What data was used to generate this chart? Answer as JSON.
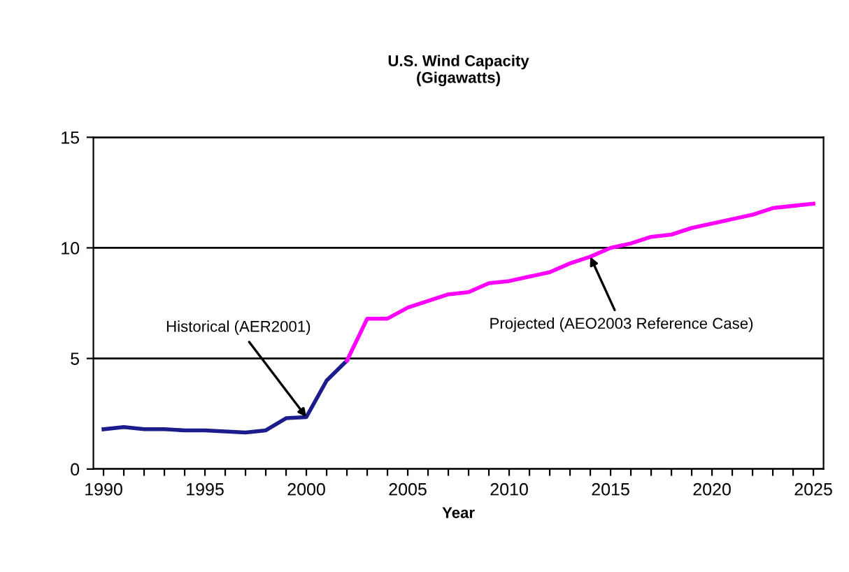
{
  "chart_data": {
    "type": "line",
    "title": "U.S. Wind Capacity\n(Gigawatts)",
    "xlabel": "Year",
    "series": [
      {
        "color": "#1c1c8c",
        "x": [
          1990,
          1991,
          1992,
          1993,
          1994,
          1995,
          1996,
          1997,
          1998,
          1999,
          2000,
          2001,
          2002
        ],
        "values": [
          1.8,
          1.9,
          1.8,
          1.8,
          1.75,
          1.75,
          1.7,
          1.65,
          1.75,
          2.3,
          2.35,
          4.0,
          4.9
        ]
      },
      {
        "color": "#ff00ff",
        "x": [
          2002,
          2003,
          2004,
          2005,
          2006,
          2007,
          2008,
          2009,
          2010,
          2011,
          2012,
          2013,
          2014,
          2015,
          2016,
          2017,
          2018,
          2019,
          2020,
          2021,
          2022,
          2023,
          2024,
          2025
        ],
        "values": [
          4.9,
          6.8,
          6.8,
          7.3,
          7.6,
          7.9,
          8.0,
          8.4,
          8.5,
          8.7,
          8.9,
          9.3,
          9.6,
          10.0,
          10.2,
          10.5,
          10.6,
          10.9,
          11.1,
          11.3,
          11.5,
          11.8,
          11.9,
          12.0
        ]
      }
    ],
    "annotations": [
      {
        "text": "Historical (AER2001)",
        "x": 2000,
        "y": 2.35
      },
      {
        "text": "Projected (AEO2003 Reference Case)",
        "x": 2014,
        "y": 9.6
      }
    ],
    "xlim": [
      1989.5,
      2025.5
    ],
    "xticks": [
      1990,
      {
        "value": 1991,
        "label": null
      },
      {
        "value": 1992,
        "label": null
      },
      {
        "value": 1993,
        "label": null
      },
      {
        "value": 1994,
        "label": null
      },
      1995,
      {
        "value": 1996,
        "label": null
      },
      {
        "value": 1997,
        "label": null
      },
      {
        "value": 1998,
        "label": null
      },
      {
        "value": 1999,
        "label": null
      },
      2000,
      {
        "value": 2001,
        "label": null
      },
      {
        "value": 2002,
        "label": null
      },
      {
        "value": 2003,
        "label": null
      },
      {
        "value": 2004,
        "label": null
      },
      2005,
      {
        "value": 2006,
        "label": null
      },
      {
        "value": 2007,
        "label": null
      },
      {
        "value": 2008,
        "label": null
      },
      {
        "value": 2009,
        "label": null
      },
      2010,
      {
        "value": 2011,
        "label": null
      },
      {
        "value": 2012,
        "label": null
      },
      {
        "value": 2013,
        "label": null
      },
      {
        "value": 2014,
        "label": null
      },
      2015,
      {
        "value": 2016,
        "label": null
      },
      {
        "value": 2017,
        "label": null
      },
      {
        "value": 2018,
        "label": null
      },
      {
        "value": 2019,
        "label": null
      },
      2020,
      {
        "value": 2021,
        "label": null
      },
      {
        "value": 2022,
        "label": null
      },
      {
        "value": 2023,
        "label": null
      },
      {
        "value": 2024,
        "label": null
      },
      2025
    ],
    "ylim": [
      0,
      15
    ],
    "yticks": [
      0,
      5,
      10,
      15
    ],
    "grid": "y",
    "marker": "none",
    "line_style": "solid"
  }
}
